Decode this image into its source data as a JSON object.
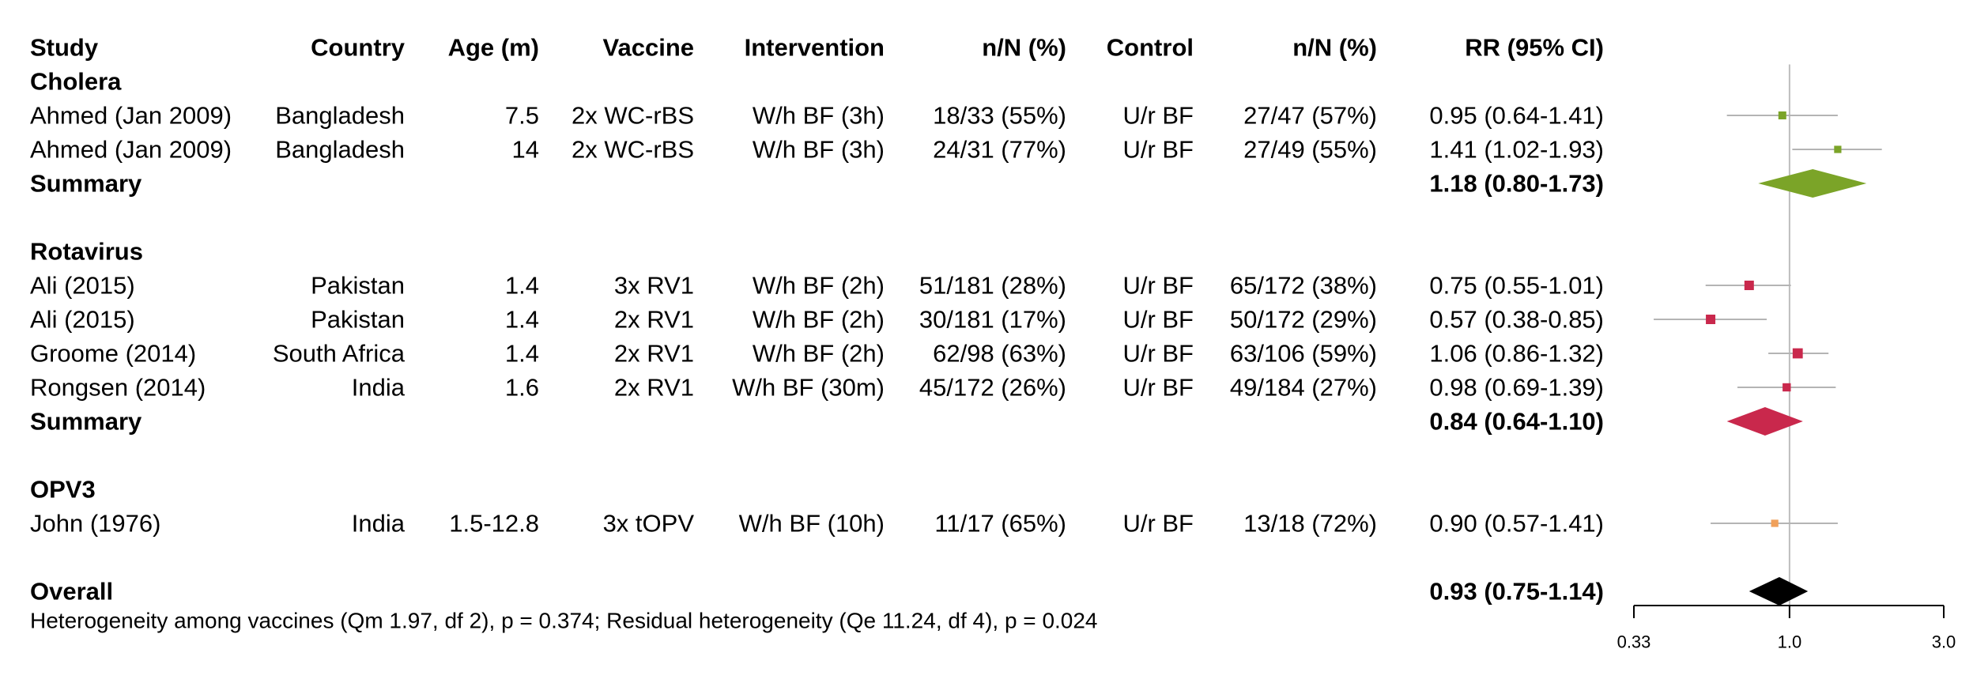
{
  "chart_data": {
    "type": "forest",
    "headers": {
      "study": "Study",
      "country": "Country",
      "age": "Age (m)",
      "vaccine": "Vaccine",
      "intervention": "Intervention",
      "int_n": "n/N (%)",
      "control": "Control",
      "ctl_n": "n/N (%)",
      "rr": "RR (95% CI)"
    },
    "scale": "log",
    "xlim": [
      0.33,
      3.0
    ],
    "ticks": [
      {
        "value": 0.33,
        "label": "0.33"
      },
      {
        "value": 1.0,
        "label": "1.0"
      },
      {
        "value": 3.0,
        "label": "3.0"
      }
    ],
    "reference_line": 1.0,
    "groups": [
      {
        "name": "Cholera",
        "color": "#7BA428",
        "studies": [
          {
            "study": "Ahmed (Jan 2009)",
            "country": "Bangladesh",
            "age": "7.5",
            "vaccine": "2x WC-rBS",
            "intervention": "W/h BF (3h)",
            "int_n": "18/33 (55%)",
            "control": "U/r BF",
            "ctl_n": "27/47 (57%)",
            "rr_text": "0.95 (0.64-1.41)",
            "rr": 0.95,
            "lo": 0.64,
            "hi": 1.41,
            "weight": 0.5
          },
          {
            "study": "Ahmed (Jan 2009)",
            "country": "Bangladesh",
            "age": "14",
            "vaccine": "2x WC-rBS",
            "intervention": "W/h BF (3h)",
            "int_n": "24/31 (77%)",
            "control": "U/r BF",
            "ctl_n": "27/49 (55%)",
            "rr_text": "1.41 (1.02-1.93)",
            "rr": 1.41,
            "lo": 1.02,
            "hi": 1.93,
            "weight": 0.4
          }
        ],
        "summary": {
          "label": "Summary",
          "rr_text": "1.18 (0.80-1.73)",
          "rr": 1.18,
          "lo": 0.8,
          "hi": 1.73
        }
      },
      {
        "name": "Rotavirus",
        "color": "#C9284C",
        "studies": [
          {
            "study": "Ali (2015)",
            "country": "Pakistan",
            "age": "1.4",
            "vaccine": "3x RV1",
            "intervention": "W/h BF (2h)",
            "int_n": "51/181 (28%)",
            "control": "U/r BF",
            "ctl_n": "65/172 (38%)",
            "rr_text": "0.75 (0.55-1.01)",
            "rr": 0.75,
            "lo": 0.55,
            "hi": 1.01,
            "weight": 0.75
          },
          {
            "study": "Ali (2015)",
            "country": "Pakistan",
            "age": "1.4",
            "vaccine": "2x RV1",
            "intervention": "W/h BF (2h)",
            "int_n": "30/181 (17%)",
            "control": "U/r BF",
            "ctl_n": "50/172 (29%)",
            "rr_text": "0.57 (0.38-0.85)",
            "rr": 0.57,
            "lo": 0.38,
            "hi": 0.85,
            "weight": 0.75
          },
          {
            "study": "Groome (2014)",
            "country": "South Africa",
            "age": "1.4",
            "vaccine": "2x RV1",
            "intervention": "W/h BF (2h)",
            "int_n": "62/98 (63%)",
            "control": "U/r BF",
            "ctl_n": "63/106 (59%)",
            "rr_text": "1.06 (0.86-1.32)",
            "rr": 1.06,
            "lo": 0.86,
            "hi": 1.32,
            "weight": 0.85
          },
          {
            "study": "Rongsen (2014)",
            "country": "India",
            "age": "1.6",
            "vaccine": "2x RV1",
            "intervention": "W/h BF (30m)",
            "int_n": "45/172 (26%)",
            "control": "U/r BF",
            "ctl_n": "49/184 (27%)",
            "rr_text": "0.98 (0.69-1.39)",
            "rr": 0.98,
            "lo": 0.69,
            "hi": 1.39,
            "weight": 0.55
          }
        ],
        "summary": {
          "label": "Summary",
          "rr_text": "0.84 (0.64-1.10)",
          "rr": 0.84,
          "lo": 0.64,
          "hi": 1.1
        }
      },
      {
        "name": "OPV3",
        "color": "#F0A05A",
        "studies": [
          {
            "study": "John (1976)",
            "country": "India",
            "age": "1.5-12.8",
            "vaccine": "3x tOPV",
            "intervention": "W/h BF (10h)",
            "int_n": "11/17 (65%)",
            "control": "U/r BF",
            "ctl_n": "13/18 (72%)",
            "rr_text": "0.90 (0.57-1.41)",
            "rr": 0.9,
            "lo": 0.57,
            "hi": 1.41,
            "weight": 0.4
          }
        ]
      }
    ],
    "overall": {
      "label": "Overall",
      "rr_text": "0.93 (0.75-1.14)",
      "rr": 0.93,
      "lo": 0.75,
      "hi": 1.14,
      "color": "#000000"
    },
    "footnote": "Heterogeneity among vaccines (Qm 1.97, df 2), p = 0.374; Residual heterogeneity (Qe 11.24, df 4), p = 0.024",
    "colors": {
      "ci_line": "#B4B4B4",
      "ref_line": "#BEBEBE",
      "axis": "#000000"
    }
  }
}
